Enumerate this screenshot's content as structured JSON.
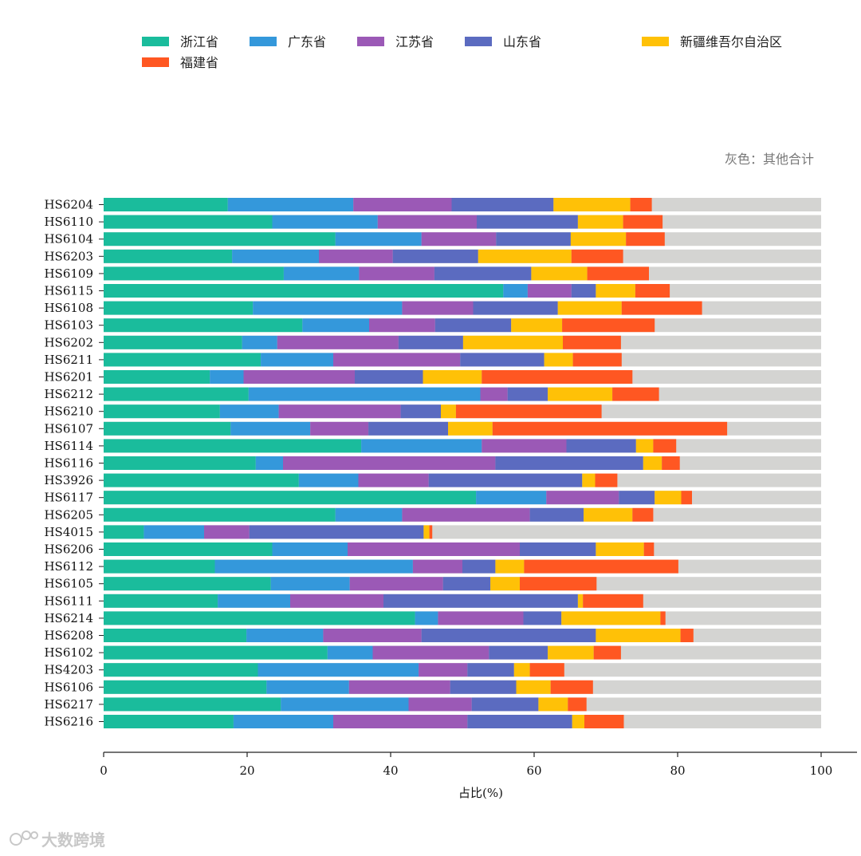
{
  "chart_data": {
    "type": "bar",
    "orientation": "horizontal",
    "stacked": true,
    "note": "灰色：其他合计",
    "xlabel": "占比(%)",
    "xlim": [
      0,
      100
    ],
    "xticks": [
      0,
      20,
      40,
      60,
      80,
      100
    ],
    "legend_position": "top-left",
    "other_color": "#d4d4d2",
    "categories": [
      "HS6204",
      "HS6110",
      "HS6104",
      "HS6203",
      "HS6109",
      "HS6115",
      "HS6108",
      "HS6103",
      "HS6202",
      "HS6211",
      "HS6201",
      "HS6212",
      "HS6210",
      "HS6107",
      "HS6114",
      "HS6116",
      "HS3926",
      "HS6117",
      "HS6205",
      "HS4015",
      "HS6206",
      "HS6112",
      "HS6105",
      "HS6111",
      "HS6214",
      "HS6208",
      "HS6102",
      "HS4203",
      "HS6106",
      "HS6217",
      "HS6216"
    ],
    "series": [
      {
        "name": "浙江省",
        "color": "#1abc9c",
        "values": [
          17.3,
          23.5,
          32.3,
          17.9,
          25.1,
          55.7,
          20.8,
          27.7,
          19.3,
          21.9,
          14.8,
          20.2,
          16.2,
          17.7,
          35.9,
          21.2,
          27.2,
          51.9,
          32.3,
          5.6,
          23.5,
          15.5,
          23.3,
          15.9,
          43.4,
          19.9,
          31.2,
          21.5,
          22.7,
          24.7,
          18.1
        ]
      },
      {
        "name": "广东省",
        "color": "#3498db",
        "values": [
          17.5,
          14.7,
          12.0,
          12.1,
          10.5,
          3.4,
          20.8,
          9.3,
          4.9,
          10.1,
          4.7,
          32.3,
          8.2,
          11.1,
          16.8,
          3.8,
          8.3,
          9.8,
          9.3,
          8.4,
          10.5,
          27.6,
          11.0,
          10.1,
          3.2,
          10.7,
          6.3,
          22.4,
          11.5,
          17.8,
          13.9
        ]
      },
      {
        "name": "江苏省",
        "color": "#9b59b6",
        "values": [
          13.7,
          13.8,
          10.4,
          10.3,
          10.5,
          6.1,
          9.9,
          9.2,
          16.9,
          17.7,
          15.5,
          3.8,
          17.0,
          8.1,
          11.8,
          29.6,
          9.8,
          10.1,
          17.8,
          6.3,
          24.0,
          6.9,
          13.0,
          13.0,
          11.9,
          13.7,
          16.2,
          6.8,
          14.1,
          8.8,
          18.7
        ]
      },
      {
        "name": "山东省",
        "color": "#5b6bc0",
        "values": [
          14.2,
          14.1,
          10.4,
          11.9,
          13.5,
          3.4,
          11.8,
          10.6,
          9.0,
          11.7,
          9.5,
          5.6,
          5.6,
          11.1,
          9.7,
          20.6,
          21.4,
          5.0,
          7.5,
          24.3,
          10.6,
          4.6,
          6.6,
          27.1,
          5.3,
          24.3,
          8.2,
          6.5,
          9.2,
          9.3,
          14.6
        ]
      },
      {
        "name": "新疆维吾尔自治区",
        "color": "#ffc107",
        "values": [
          10.7,
          6.3,
          7.7,
          13.0,
          7.8,
          5.5,
          8.9,
          7.1,
          13.9,
          4.0,
          8.2,
          9.0,
          2.1,
          6.2,
          2.4,
          2.6,
          1.8,
          3.7,
          6.8,
          0.8,
          6.7,
          4.0,
          4.1,
          0.7,
          13.8,
          11.8,
          6.4,
          2.2,
          4.8,
          4.1,
          1.7
        ]
      },
      {
        "name": "福建省",
        "color": "#ff5722",
        "values": [
          3.0,
          5.5,
          5.4,
          7.2,
          8.6,
          4.8,
          11.2,
          12.9,
          8.1,
          6.8,
          21.0,
          6.5,
          20.3,
          32.7,
          3.2,
          2.5,
          3.1,
          1.5,
          2.9,
          0.4,
          1.4,
          21.5,
          10.7,
          8.4,
          0.7,
          1.8,
          3.8,
          4.8,
          5.9,
          2.6,
          5.5
        ]
      }
    ]
  },
  "watermark": {
    "text": "大数跨境"
  }
}
